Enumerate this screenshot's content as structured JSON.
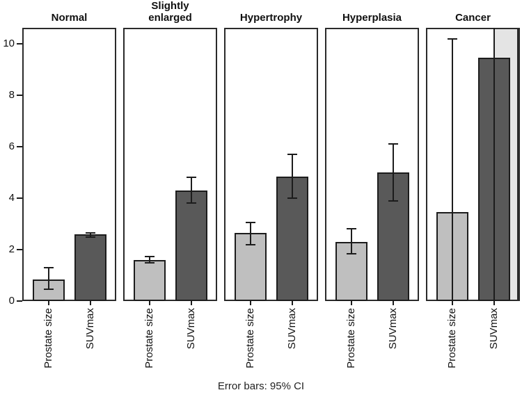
{
  "chart_data": {
    "type": "bar",
    "title": "",
    "caption": "Error bars: 95% CI",
    "xlabel": "",
    "ylabel": "",
    "ylim": [
      0,
      10.6
    ],
    "y_axis": {
      "ticks": [
        0,
        2,
        4,
        6,
        8,
        10
      ]
    },
    "grid": false,
    "legend": "none",
    "bar_labels": [
      "Prostate size",
      "SUVmax"
    ],
    "colors": {
      "light_bar": "#bfbfbf",
      "dark_bar": "#595959",
      "clipped_bar": "#e4e4e4",
      "line": "#1c1c1c",
      "frame": "#2a2a2a"
    },
    "panels": [
      {
        "title": "Normal",
        "title_lines": [
          "Normal"
        ],
        "bars": [
          {
            "label": "Prostate size",
            "series": "light",
            "value": 0.85,
            "ci_low": 0.45,
            "ci_high": 1.3
          },
          {
            "label": "SUVmax",
            "series": "dark",
            "value": 2.6,
            "ci_low": 2.5,
            "ci_high": 2.65
          }
        ]
      },
      {
        "title": "Slightly enlarged",
        "title_lines": [
          "Slightly",
          "enlarged"
        ],
        "bars": [
          {
            "label": "Prostate size",
            "series": "light",
            "value": 1.6,
            "ci_low": 1.48,
            "ci_high": 1.72
          },
          {
            "label": "SUVmax",
            "series": "dark",
            "value": 4.3,
            "ci_low": 3.8,
            "ci_high": 4.8
          }
        ]
      },
      {
        "title": "Hypertrophy",
        "title_lines": [
          "Hypertrophy"
        ],
        "bars": [
          {
            "label": "Prostate size",
            "series": "light",
            "value": 2.65,
            "ci_low": 2.2,
            "ci_high": 3.05
          },
          {
            "label": "SUVmax",
            "series": "dark",
            "value": 4.85,
            "ci_low": 4.0,
            "ci_high": 5.7
          }
        ]
      },
      {
        "title": "Hyperplasia",
        "title_lines": [
          "Hyperplasia"
        ],
        "bars": [
          {
            "label": "Prostate size",
            "series": "light",
            "value": 2.3,
            "ci_low": 1.85,
            "ci_high": 2.8
          },
          {
            "label": "SUVmax",
            "series": "dark",
            "value": 5.0,
            "ci_low": 3.9,
            "ci_high": 6.1
          }
        ]
      },
      {
        "title": "Cancer",
        "title_lines": [
          "Cancer"
        ],
        "bars": [
          {
            "label": "Prostate size",
            "series": "light",
            "value": 3.45,
            "ci_low": null,
            "ci_low_clipped": true,
            "ci_high": 10.2
          },
          {
            "label": "SUVmax",
            "series": "dark",
            "value": 9.45,
            "ci_low": null,
            "ci_low_clipped": true,
            "ci_high": null,
            "ci_high_clipped": true
          }
        ],
        "extra_bar": {
          "description": "partially visible light bar clipped at top of panel, behind SUVmax bar",
          "series": "clipped"
        }
      }
    ]
  }
}
